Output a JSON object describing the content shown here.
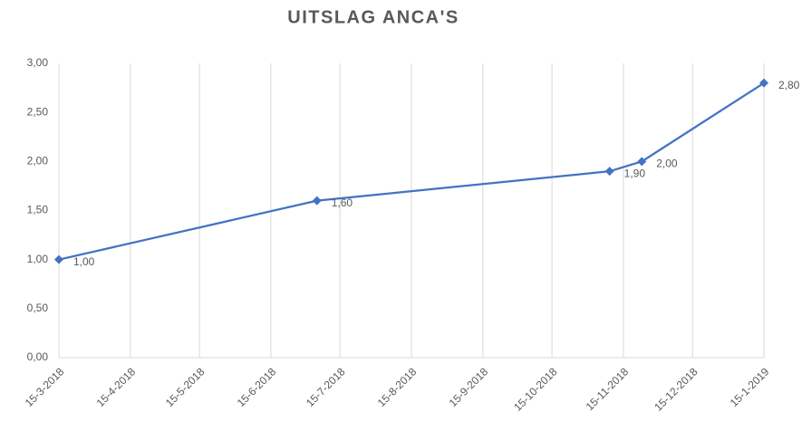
{
  "chart_data": {
    "type": "line",
    "title": "UITSLAG ANCA'S",
    "x": [
      "2018-03-15",
      "2018-07-05",
      "2018-11-09",
      "2018-11-23",
      "2019-01-15"
    ],
    "series": [
      {
        "name": "Uitslag",
        "color": "#4472c4",
        "values": [
          1.0,
          1.6,
          1.9,
          2.0,
          2.8
        ],
        "value_labels": [
          "1,00",
          "1,60",
          "1,90",
          "2,00",
          "2,80"
        ]
      }
    ],
    "xlim": [
      "2018-03-15",
      "2019-01-15"
    ],
    "xticks": [
      {
        "value": "2018-03-15",
        "label": "15-3-2018"
      },
      {
        "value": "2018-04-15",
        "label": "15-4-2018"
      },
      {
        "value": "2018-05-15",
        "label": "15-5-2018"
      },
      {
        "value": "2018-06-15",
        "label": "15-6-2018"
      },
      {
        "value": "2018-07-15",
        "label": "15-7-2018"
      },
      {
        "value": "2018-08-15",
        "label": "15-8-2018"
      },
      {
        "value": "2018-09-15",
        "label": "15-9-2018"
      },
      {
        "value": "2018-10-15",
        "label": "15-10-2018"
      },
      {
        "value": "2018-11-15",
        "label": "15-11-2018"
      },
      {
        "value": "2018-12-15",
        "label": "15-12-2018"
      },
      {
        "value": "2019-01-15",
        "label": "15-1-2019"
      }
    ],
    "ylim": [
      0,
      3
    ],
    "yticks": [
      {
        "value": 0,
        "label": "0,00"
      },
      {
        "value": 0.5,
        "label": "0,50"
      },
      {
        "value": 1,
        "label": "1,00"
      },
      {
        "value": 1.5,
        "label": "1,50"
      },
      {
        "value": 2,
        "label": "2,00"
      },
      {
        "value": 2.5,
        "label": "2,50"
      },
      {
        "value": 3,
        "label": "3,00"
      }
    ],
    "grid": true
  }
}
